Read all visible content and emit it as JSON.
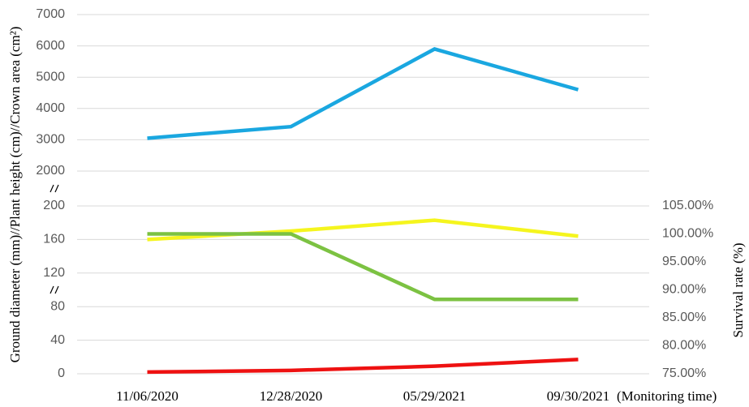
{
  "chart_data": {
    "type": "line",
    "x_label": "(Monitoring time)",
    "y_label": "Ground diameter (mm)//Plant height (cm)//Crown area (cm²)",
    "y2_label": "Survival rate (%)",
    "categories": [
      "11/06/2020",
      "12/28/2020",
      "05/29/2021",
      "09/30/2021"
    ],
    "y_segments": [
      {
        "ylim": [
          0,
          200
        ],
        "yticks": [
          0,
          40,
          80,
          120,
          160,
          200
        ]
      },
      {
        "ylim": [
          2000,
          7000
        ],
        "yticks": [
          2000,
          3000,
          4000,
          5000,
          6000,
          7000
        ]
      }
    ],
    "y2lim": [
      75,
      105
    ],
    "y2ticks": [
      {
        "value": 75,
        "label": "75.00%"
      },
      {
        "value": 80,
        "label": "80.00%"
      },
      {
        "value": 85,
        "label": "85.00%"
      },
      {
        "value": 90,
        "label": "90.00%"
      },
      {
        "value": 95,
        "label": "95.00%"
      },
      {
        "value": 100,
        "label": "100.00%"
      },
      {
        "value": 105,
        "label": "105.00%"
      }
    ],
    "grid": true,
    "series": [
      {
        "color": "#1aa7e0",
        "values": [
          3050,
          3420,
          5900,
          4600
        ]
      },
      {
        "color": "#f5f51e",
        "values": [
          160,
          170,
          183,
          164
        ]
      },
      {
        "color": "#7cc242",
        "axis": "y2",
        "values": [
          100,
          100,
          88.3,
          88.3
        ]
      },
      {
        "color": "#ee1111",
        "values": [
          2,
          4,
          9,
          17
        ]
      }
    ]
  }
}
